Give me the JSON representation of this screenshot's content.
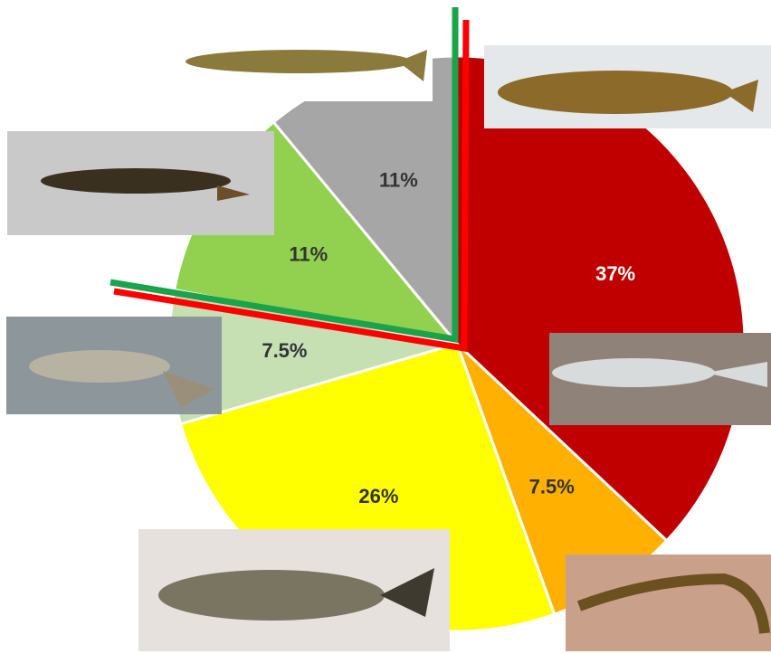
{
  "chart_data": {
    "type": "pie",
    "values": [
      37,
      7.5,
      26,
      7.5,
      11,
      11
    ],
    "value_labels": [
      "37%",
      "7.5%",
      "26%",
      "7.5%",
      "11%",
      "11%"
    ],
    "colors": [
      "#c00000",
      "#ffb000",
      "#ffff00",
      "#c6e0b4",
      "#92d050",
      "#a6a6a6"
    ],
    "label_colors": [
      "#ffffff",
      "#333333",
      "#333333",
      "#333333",
      "#333333",
      "#333333"
    ]
  }
}
